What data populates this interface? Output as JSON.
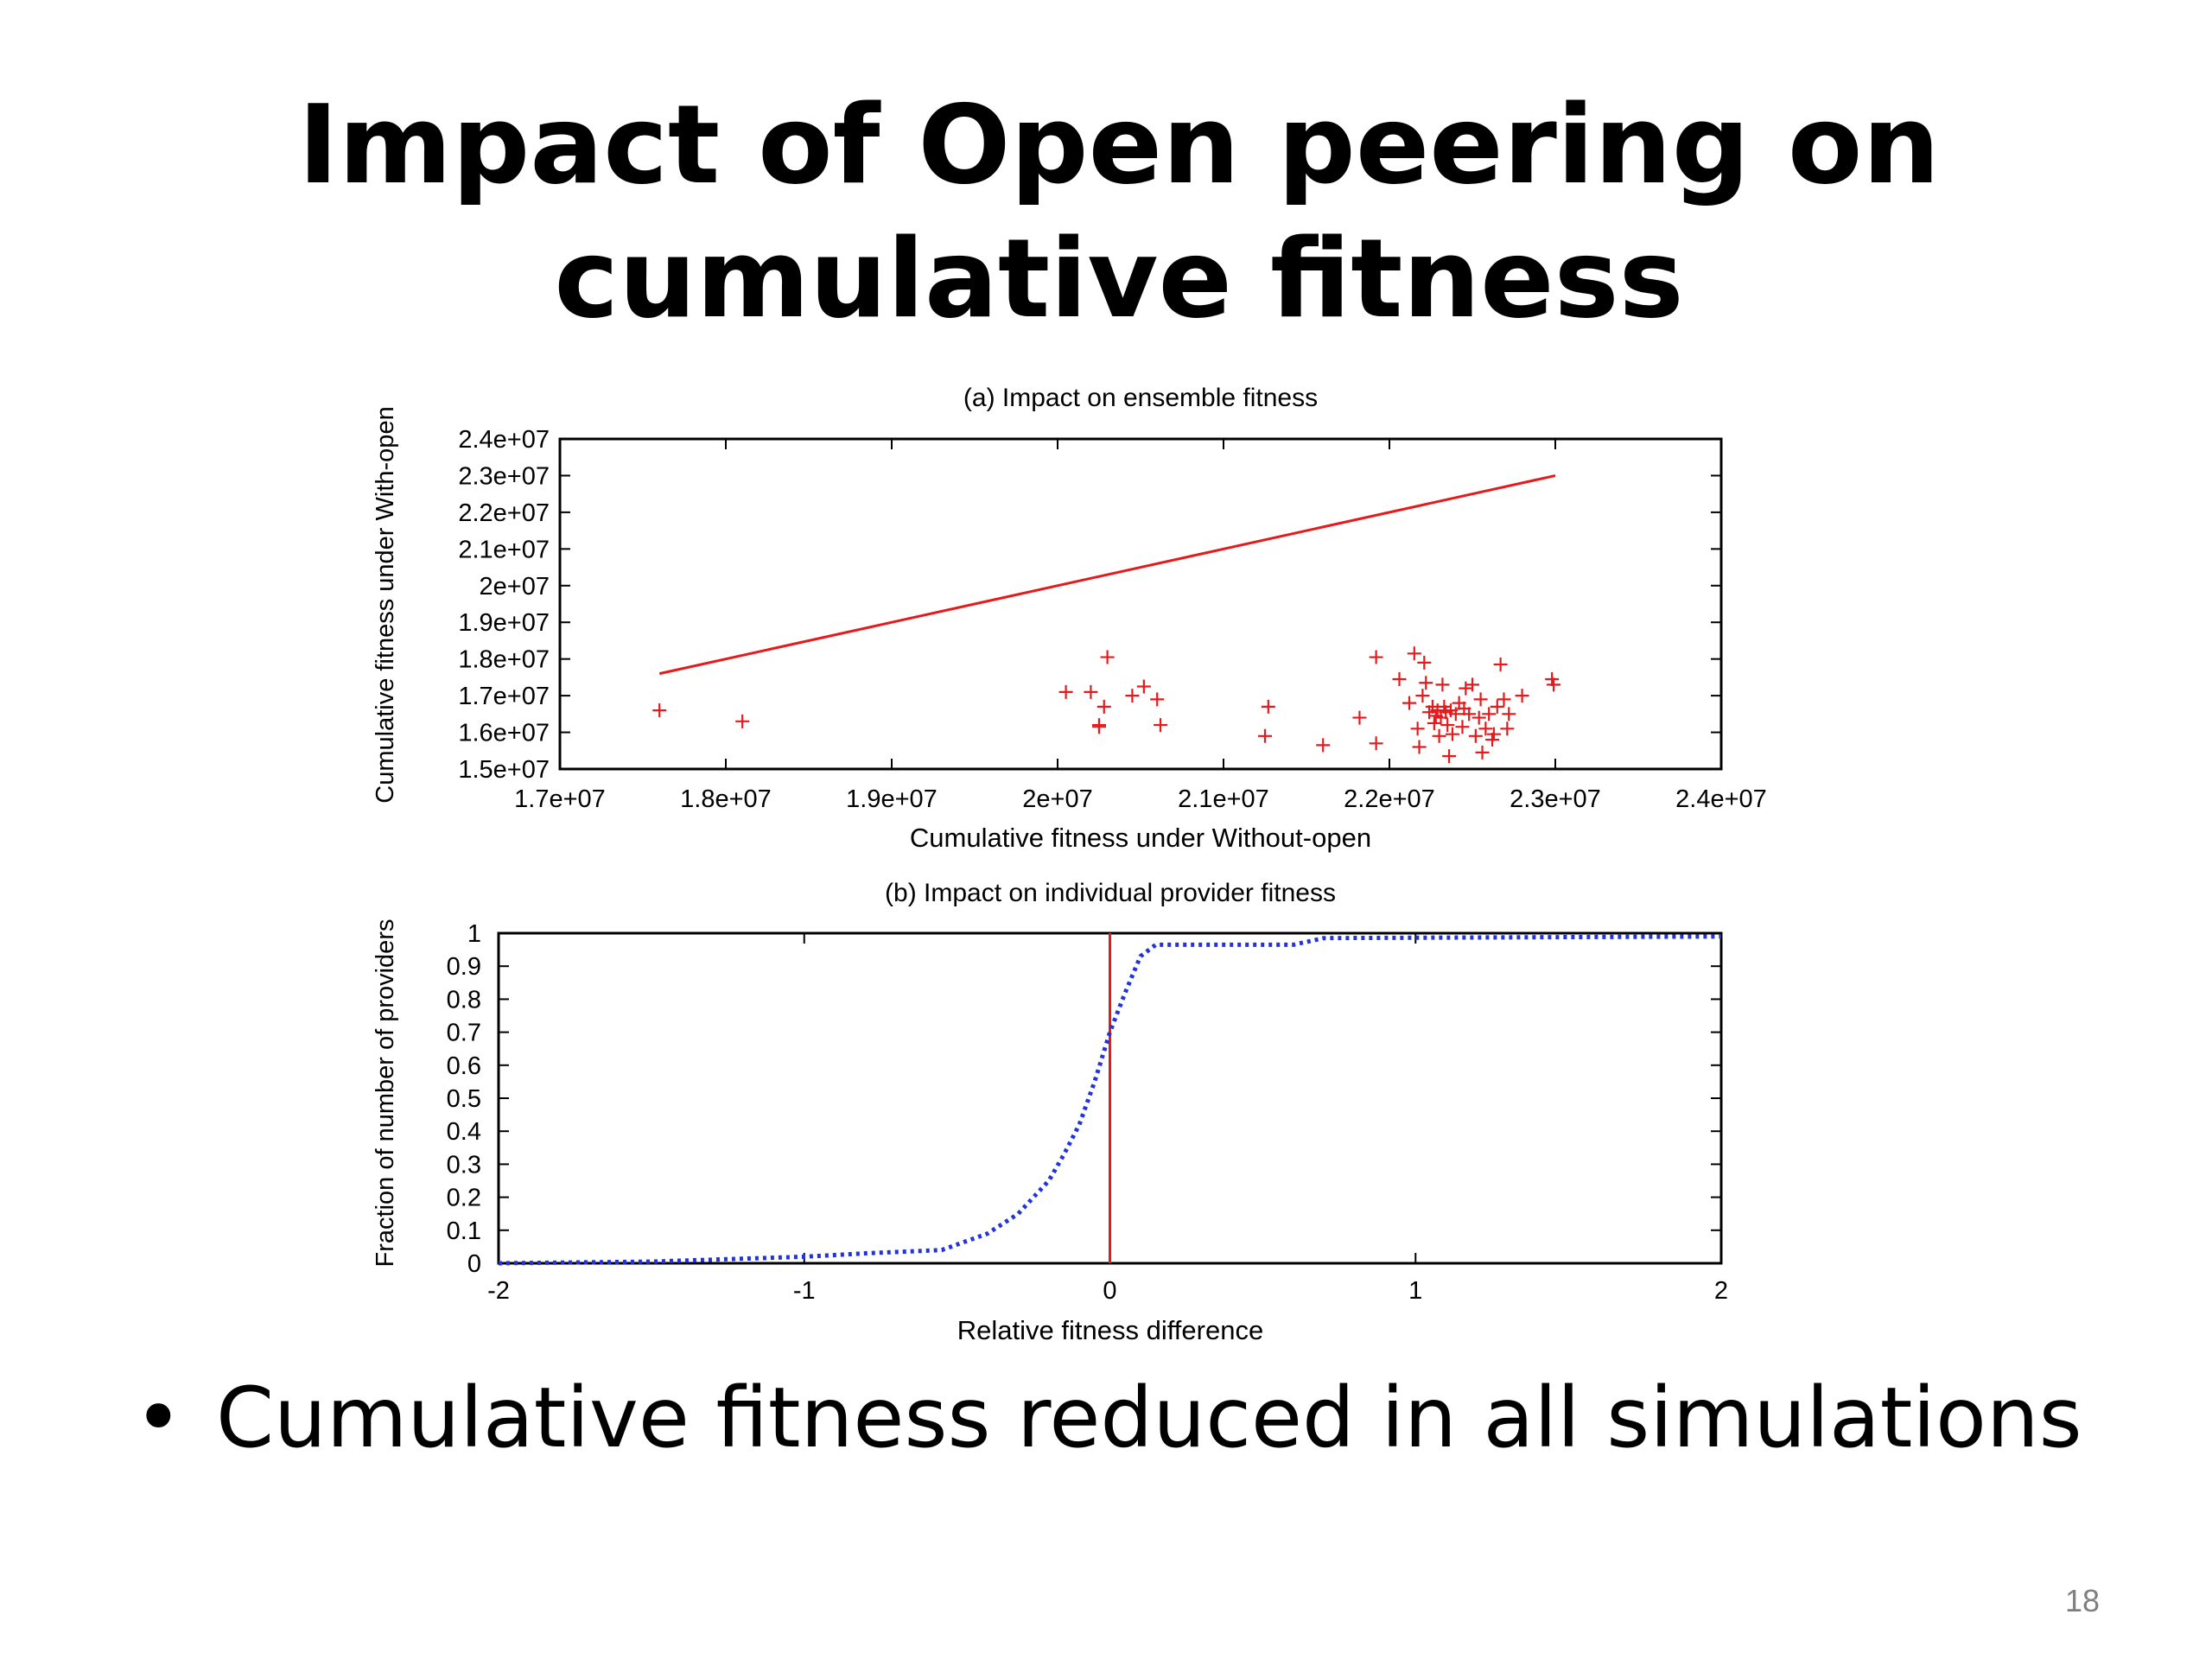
{
  "slide": {
    "title_line1": "Impact of Open peering on",
    "title_line2": "cumulative fitness",
    "bullet_text": "Cumulative fitness reduced in all simulations",
    "bullet_symbol": "•",
    "page_number": "18"
  },
  "chart_data": [
    {
      "type": "scatter",
      "title": "(a) Impact on ensemble fitness",
      "xlabel": "Cumulative fitness under Without-open",
      "ylabel": "Cumulative fitness under With-open",
      "xlim": [
        17000000,
        24000000
      ],
      "ylim": [
        15000000,
        24000000
      ],
      "xticks": [
        "1.7e+07",
        "1.8e+07",
        "1.9e+07",
        "2e+07",
        "2.1e+07",
        "2.2e+07",
        "2.3e+07",
        "2.4e+07"
      ],
      "yticks": [
        "1.5e+07",
        "1.6e+07",
        "1.7e+07",
        "1.8e+07",
        "1.9e+07",
        "2e+07",
        "2.1e+07",
        "2.2e+07",
        "2.3e+07",
        "2.4e+07"
      ],
      "color": "#e41a1c",
      "reference_line": {
        "x": [
          17600000,
          23000000
        ],
        "y": [
          17600000,
          23000000
        ]
      },
      "points": [
        [
          17600000,
          16600000
        ],
        [
          18100000,
          16300000
        ],
        [
          20050000,
          17100000
        ],
        [
          20200000,
          17100000
        ],
        [
          20250000,
          16150000
        ],
        [
          20250000,
          16200000
        ],
        [
          20280000,
          16700000
        ],
        [
          20300000,
          18050000
        ],
        [
          20450000,
          17000000
        ],
        [
          20520000,
          17250000
        ],
        [
          20600000,
          16900000
        ],
        [
          20620000,
          16200000
        ],
        [
          21250000,
          15900000
        ],
        [
          21270000,
          16700000
        ],
        [
          21600000,
          15650000
        ],
        [
          21820000,
          16400000
        ],
        [
          21920000,
          15700000
        ],
        [
          21920000,
          18050000
        ],
        [
          22060000,
          17450000
        ],
        [
          22120000,
          16800000
        ],
        [
          22150000,
          18150000
        ],
        [
          22170000,
          16100000
        ],
        [
          22180000,
          15600000
        ],
        [
          22200000,
          17000000
        ],
        [
          22210000,
          17900000
        ],
        [
          22220000,
          17350000
        ],
        [
          22240000,
          16550000
        ],
        [
          22260000,
          16700000
        ],
        [
          22270000,
          16250000
        ],
        [
          22280000,
          16450000
        ],
        [
          22290000,
          16600000
        ],
        [
          22300000,
          15900000
        ],
        [
          22310000,
          16400000
        ],
        [
          22320000,
          17300000
        ],
        [
          22330000,
          16700000
        ],
        [
          22340000,
          16550000
        ],
        [
          22350000,
          16200000
        ],
        [
          22360000,
          15350000
        ],
        [
          22370000,
          16600000
        ],
        [
          22380000,
          15950000
        ],
        [
          22400000,
          16500000
        ],
        [
          22420000,
          16800000
        ],
        [
          22440000,
          16150000
        ],
        [
          22450000,
          16650000
        ],
        [
          22460000,
          17200000
        ],
        [
          22480000,
          16500000
        ],
        [
          22500000,
          17300000
        ],
        [
          22520000,
          15900000
        ],
        [
          22540000,
          16400000
        ],
        [
          22550000,
          16900000
        ],
        [
          22560000,
          15450000
        ],
        [
          22580000,
          16100000
        ],
        [
          22600000,
          16500000
        ],
        [
          22620000,
          15800000
        ],
        [
          22630000,
          15950000
        ],
        [
          22650000,
          16700000
        ],
        [
          22670000,
          17850000
        ],
        [
          22690000,
          16900000
        ],
        [
          22710000,
          16100000
        ],
        [
          22720000,
          16500000
        ],
        [
          22800000,
          17000000
        ],
        [
          22980000,
          17450000
        ],
        [
          22990000,
          17300000
        ]
      ]
    },
    {
      "type": "line",
      "title": "(b) Impact on individual provider fitness",
      "xlabel": "Relative fitness difference",
      "ylabel": "Fraction of number of providers",
      "xlim": [
        -2,
        2
      ],
      "ylim": [
        0,
        1
      ],
      "xticks": [
        "-2",
        "-1",
        "0",
        "1",
        "2"
      ],
      "yticks": [
        "0",
        "0.1",
        "0.2",
        "0.3",
        "0.4",
        "0.5",
        "0.6",
        "0.7",
        "0.8",
        "0.9",
        "1"
      ],
      "line_color": "#2233dd",
      "reference_line": {
        "x": 0,
        "color": "#e41a1c"
      },
      "x": [
        -2,
        -1.5,
        -1.0,
        -0.8,
        -0.55,
        -0.4,
        -0.3,
        -0.2,
        -0.15,
        -0.1,
        -0.05,
        0,
        0.05,
        0.1,
        0.15,
        0.6,
        0.7,
        2.0
      ],
      "y": [
        0,
        0.005,
        0.02,
        0.03,
        0.04,
        0.09,
        0.15,
        0.25,
        0.33,
        0.42,
        0.55,
        0.7,
        0.82,
        0.93,
        0.965,
        0.965,
        0.985,
        0.99
      ]
    }
  ]
}
